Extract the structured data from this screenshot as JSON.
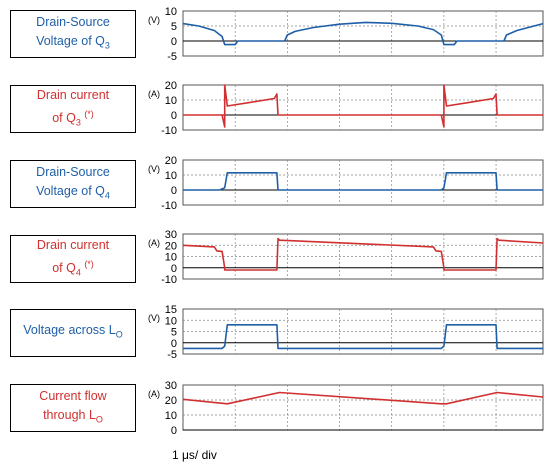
{
  "chart_data": [
    {
      "type": "line",
      "label_lines": [
        "Drain-Source",
        "Voltage of Q3"
      ],
      "label_color": "#1f5fa8",
      "unit": "(V)",
      "ylim": [
        -5,
        10
      ],
      "yticks": [
        "10",
        "5",
        "0",
        "-5"
      ],
      "series": [
        {
          "color": "#1f5fa8",
          "points": [
            [
              0,
              5.8
            ],
            [
              0.3,
              5
            ],
            [
              0.6,
              3.5
            ],
            [
              0.75,
              1.5
            ],
            [
              0.8,
              -1.2
            ],
            [
              1.0,
              -1.2
            ],
            [
              1.05,
              0
            ],
            [
              1.7,
              0
            ],
            [
              1.75,
              0
            ],
            [
              1.8,
              0
            ],
            [
              1.85,
              0
            ],
            [
              1.95,
              0
            ],
            [
              2.0,
              2
            ],
            [
              2.15,
              3.2
            ],
            [
              2.5,
              4.5
            ],
            [
              3.0,
              5.6
            ],
            [
              3.5,
              6.2
            ],
            [
              4.0,
              5.9
            ],
            [
              4.5,
              5.0
            ],
            [
              4.8,
              3.8
            ],
            [
              4.95,
              2.0
            ],
            [
              5.0,
              -1.2
            ],
            [
              5.2,
              -1.2
            ],
            [
              5.25,
              0
            ],
            [
              6.0,
              0
            ],
            [
              6.05,
              0
            ],
            [
              6.15,
              0
            ],
            [
              6.2,
              2
            ],
            [
              6.4,
              3.5
            ],
            [
              6.9,
              5.8
            ]
          ]
        }
      ]
    },
    {
      "type": "line",
      "label_lines": [
        "Drain current",
        "of Q3 (*)"
      ],
      "label_color": "#d0302f",
      "unit": "(A)",
      "ylim": [
        -10,
        20
      ],
      "yticks": [
        "20",
        "10",
        "0",
        "-10"
      ],
      "series": [
        {
          "color": "#d0302f",
          "points": [
            [
              0,
              0
            ],
            [
              0.7,
              0
            ],
            [
              0.75,
              0
            ],
            [
              0.8,
              -8
            ],
            [
              0.8,
              20
            ],
            [
              0.85,
              6
            ],
            [
              1.3,
              8.5
            ],
            [
              1.75,
              11
            ],
            [
              1.8,
              14
            ],
            [
              1.82,
              0
            ],
            [
              4.95,
              0
            ],
            [
              5.0,
              -8
            ],
            [
              5.0,
              20
            ],
            [
              5.05,
              6
            ],
            [
              5.5,
              8.5
            ],
            [
              5.95,
              11
            ],
            [
              6.0,
              14
            ],
            [
              6.02,
              0
            ],
            [
              6.9,
              0
            ]
          ]
        }
      ]
    },
    {
      "type": "line",
      "label_lines": [
        "Drain-Source",
        "Voltage of Q4"
      ],
      "label_color": "#1f5fa8",
      "unit": "(V)",
      "ylim": [
        -10,
        20
      ],
      "yticks": [
        "20",
        "10",
        "0",
        "-10"
      ],
      "series": [
        {
          "color": "#1f5fa8",
          "points": [
            [
              0,
              0
            ],
            [
              0.7,
              0
            ],
            [
              0.8,
              1.5
            ],
            [
              0.85,
              11.5
            ],
            [
              1.8,
              11.5
            ],
            [
              1.82,
              0
            ],
            [
              4.95,
              0
            ],
            [
              5.0,
              1.5
            ],
            [
              5.05,
              11.5
            ],
            [
              6.0,
              11.5
            ],
            [
              6.02,
              0
            ],
            [
              6.9,
              0
            ]
          ]
        }
      ]
    },
    {
      "type": "line",
      "label_lines": [
        "Drain current",
        "of Q4 (*)"
      ],
      "label_color": "#d0302f",
      "unit": "(A)",
      "ylim": [
        -10,
        30
      ],
      "yticks": [
        "30",
        "20",
        "10",
        "0",
        "-10"
      ],
      "series": [
        {
          "color": "#d0302f",
          "points": [
            [
              0,
              20
            ],
            [
              0.6,
              18.5
            ],
            [
              0.65,
              15
            ],
            [
              0.75,
              14.5
            ],
            [
              0.8,
              0
            ],
            [
              0.8,
              -2
            ],
            [
              1.8,
              -2
            ],
            [
              1.82,
              26
            ],
            [
              1.85,
              24.5
            ],
            [
              4.8,
              18.5
            ],
            [
              4.85,
              15
            ],
            [
              4.95,
              14.5
            ],
            [
              5.0,
              0
            ],
            [
              5.0,
              -2
            ],
            [
              6.0,
              -2
            ],
            [
              6.02,
              26
            ],
            [
              6.05,
              24.5
            ],
            [
              6.9,
              22
            ]
          ]
        }
      ]
    },
    {
      "type": "line",
      "label_lines": [
        "Voltage across LO"
      ],
      "label_color": "#1f5fa8",
      "unit": "(V)",
      "ylim": [
        -5,
        15
      ],
      "yticks": [
        "15",
        "10",
        "5",
        "0",
        "-5"
      ],
      "series": [
        {
          "color": "#1f5fa8",
          "points": [
            [
              0,
              -2.5
            ],
            [
              0.75,
              -2.5
            ],
            [
              0.8,
              -1.5
            ],
            [
              0.85,
              8
            ],
            [
              1.8,
              8
            ],
            [
              1.82,
              -2.5
            ],
            [
              4.95,
              -2.5
            ],
            [
              5.0,
              -1.5
            ],
            [
              5.05,
              8
            ],
            [
              6.0,
              8
            ],
            [
              6.02,
              -2.5
            ],
            [
              6.9,
              -2.5
            ]
          ]
        }
      ]
    },
    {
      "type": "line",
      "label_lines": [
        "Current flow",
        "through LO"
      ],
      "label_color": "#d0302f",
      "unit": "(A)",
      "ylim": [
        0,
        30
      ],
      "yticks": [
        "30",
        "20",
        "10",
        "0"
      ],
      "series": [
        {
          "color": "#d0302f",
          "points": [
            [
              0,
              20.5
            ],
            [
              0.85,
              17.5
            ],
            [
              1.85,
              25
            ],
            [
              4.95,
              17.5
            ],
            [
              5.05,
              17.5
            ],
            [
              6.02,
              25
            ],
            [
              6.9,
              22
            ]
          ]
        }
      ]
    }
  ],
  "footer": "1 μs/ div"
}
